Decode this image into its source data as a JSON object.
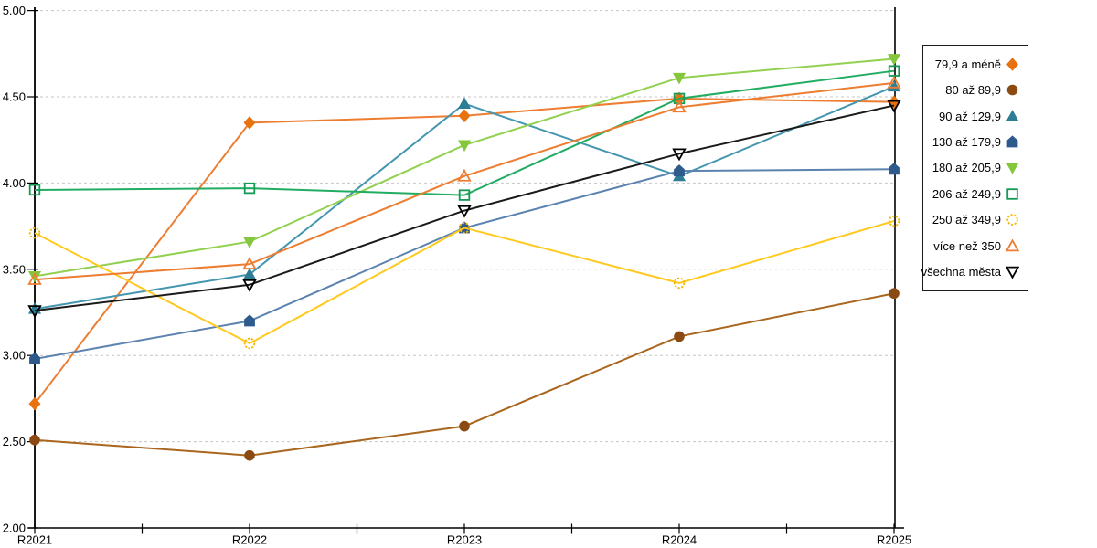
{
  "chart_data": {
    "type": "line",
    "title": "",
    "xlabel": "",
    "ylabel": "",
    "categories": [
      "R2021",
      "R2022",
      "R2023",
      "R2024",
      "R2025"
    ],
    "y_ticks": [
      "5.00",
      "4.50",
      "4.00",
      "3.50",
      "3.00",
      "2.50",
      "2.00"
    ],
    "ylim": [
      2.0,
      5.0
    ],
    "grid": "horizontal-dashed",
    "gridline_color": "#c6c6c6",
    "axis_color": "#000000",
    "legend_position": "right-box",
    "series": [
      {
        "name": "79,9 a méně",
        "marker": "diamond",
        "marker_style": "solid",
        "color": "#ED7D31",
        "marker_color": "#E8720F",
        "values": [
          2.72,
          4.35,
          4.39,
          4.49,
          4.47
        ]
      },
      {
        "name": "80 až 89,9",
        "marker": "circle",
        "marker_style": "solid",
        "color": "#A9661E",
        "marker_color": "#8A4A12",
        "values": [
          2.51,
          2.42,
          2.59,
          3.11,
          3.36
        ]
      },
      {
        "name": "90 až 129,9",
        "marker": "triangle-up",
        "marker_style": "solid",
        "color": "#4496AF",
        "marker_color": "#2D7D95",
        "values": [
          3.27,
          3.47,
          4.46,
          4.04,
          4.56
        ]
      },
      {
        "name": "130 až 179,9",
        "marker": "pentagon",
        "marker_style": "solid",
        "color": "#5C83B0",
        "marker_color": "#2E5A8C",
        "values": [
          2.98,
          3.2,
          3.74,
          4.07,
          4.08
        ]
      },
      {
        "name": "180 až 205,9",
        "marker": "triangle-down",
        "marker_style": "solid",
        "color": "#92D050",
        "marker_color": "#84C63C",
        "values": [
          3.46,
          3.66,
          4.22,
          4.61,
          4.72
        ]
      },
      {
        "name": "206 až 249,9",
        "marker": "square",
        "marker_style": "open",
        "color": "#22AC62",
        "marker_color": "#149A55",
        "values": [
          3.96,
          3.97,
          3.93,
          4.49,
          4.65
        ]
      },
      {
        "name": "250 až 349,9",
        "marker": "circle",
        "marker_style": "open",
        "dashed_marker": true,
        "color": "#FFC91E",
        "marker_color": "#F2B705",
        "values": [
          3.71,
          3.07,
          3.74,
          3.42,
          3.78
        ]
      },
      {
        "name": "více než 350",
        "marker": "triangle-up",
        "marker_style": "open",
        "color": "#ED7D31",
        "marker_color": "#ED7D31",
        "values": [
          3.44,
          3.53,
          4.04,
          4.44,
          4.58
        ]
      },
      {
        "name": "všechna města",
        "marker": "triangle-down",
        "marker_style": "open",
        "color": "#1a1a1a",
        "marker_color": "#000000",
        "values": [
          3.26,
          3.41,
          3.84,
          4.17,
          4.45
        ]
      }
    ]
  }
}
